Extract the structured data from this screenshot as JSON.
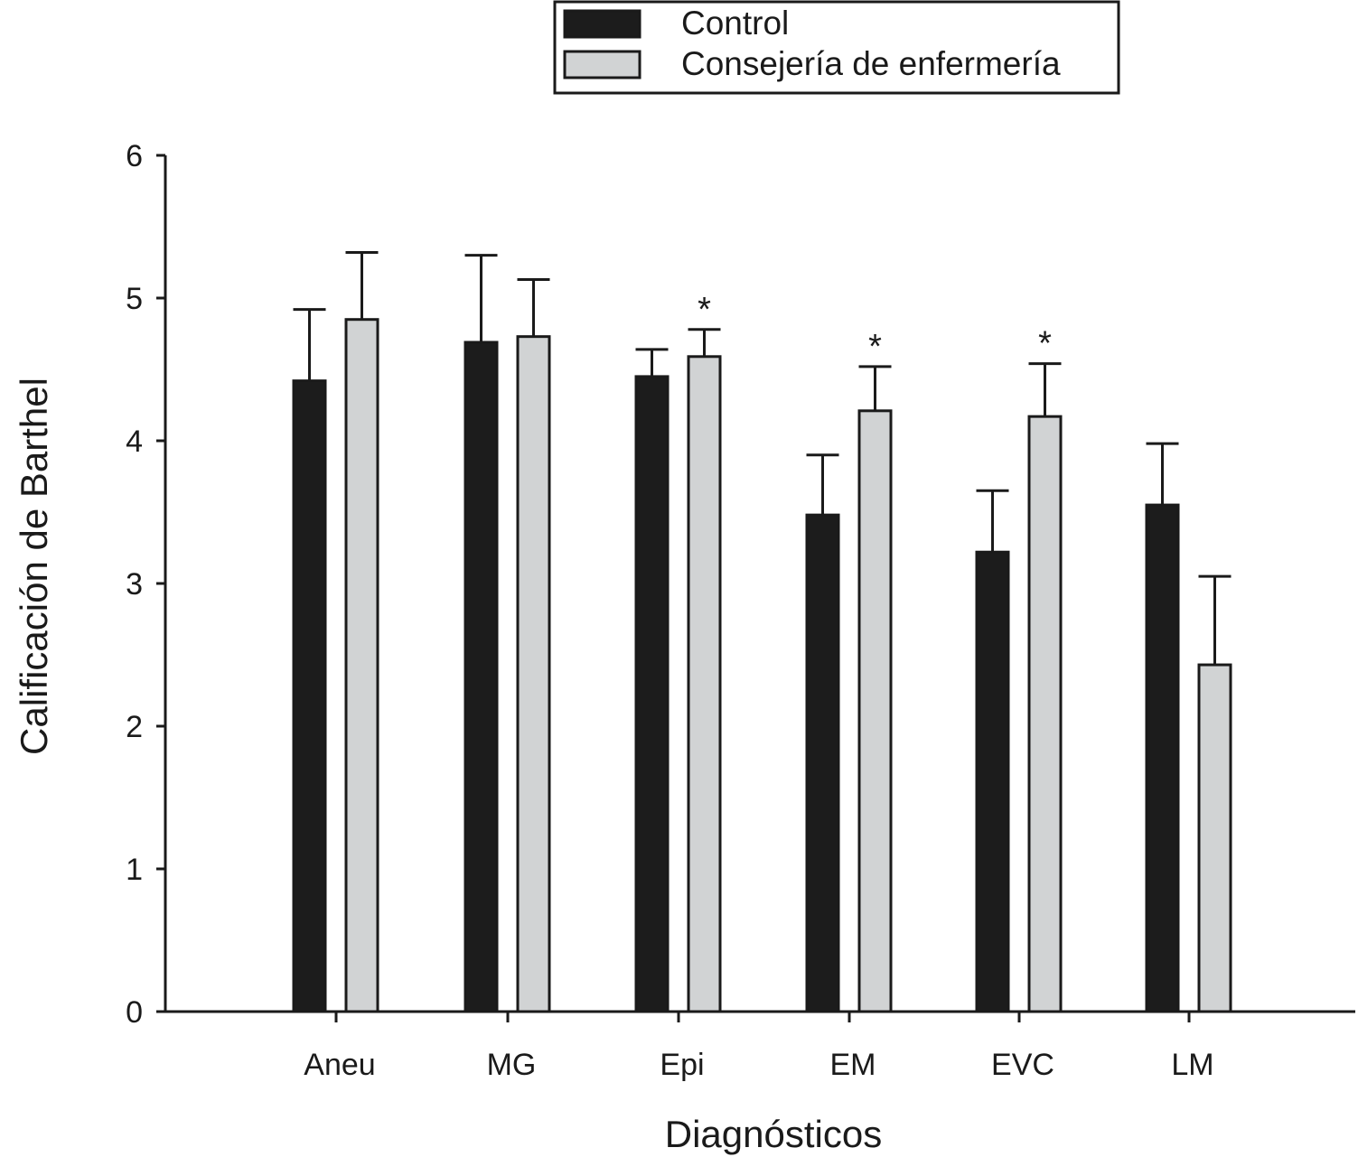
{
  "chart_data": {
    "type": "bar",
    "xlabel": "Diagnósticos",
    "ylabel": "Calificación de Barthel",
    "ylim": [
      0,
      6
    ],
    "yticks": [
      "0",
      "1",
      "2",
      "3",
      "4",
      "5",
      "6"
    ],
    "grid": false,
    "legend_position": "top",
    "categories": [
      "Aneu",
      "MG",
      "Epi",
      "EM",
      "EVC",
      "LM"
    ],
    "series": [
      {
        "name": "Control",
        "color": "#1c1c1c",
        "values": [
          4.42,
          4.69,
          4.45,
          3.48,
          3.22,
          3.55
        ],
        "error": [
          0.5,
          0.61,
          0.19,
          0.42,
          0.43,
          0.43
        ]
      },
      {
        "name": "Consejería de enfermería",
        "color": "#d1d3d4",
        "values": [
          4.85,
          4.73,
          4.59,
          4.21,
          4.17,
          2.43
        ],
        "error": [
          0.47,
          0.4,
          0.19,
          0.31,
          0.37,
          0.62
        ]
      }
    ],
    "annotations": [
      {
        "text": "*",
        "category": "Epi",
        "series": "Consejería de enfermería"
      },
      {
        "text": "*",
        "category": "EM",
        "series": "Consejería de enfermería"
      },
      {
        "text": "*",
        "category": "EVC",
        "series": "Consejería de enfermería"
      }
    ]
  }
}
